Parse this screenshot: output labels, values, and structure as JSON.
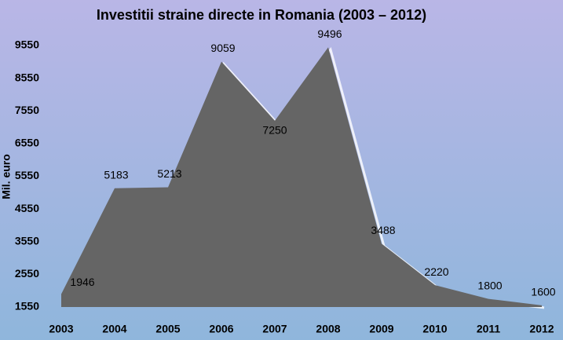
{
  "chart_data": {
    "type": "area",
    "title": "Investitii straine directe in Romania (2003 – 2012)",
    "y_label": "Mil. euro",
    "categories": [
      "2003",
      "2004",
      "2005",
      "2006",
      "2007",
      "2008",
      "2009",
      "2010",
      "2011",
      "2012"
    ],
    "values": [
      1946,
      5183,
      5213,
      9059,
      7250,
      9496,
      3488,
      2220,
      1800,
      1600
    ],
    "color": "#656565",
    "ylim": [
      1550,
      9550
    ],
    "yticks": [
      1550,
      2550,
      3550,
      4550,
      5550,
      6550,
      7550,
      8550,
      9550
    ],
    "grid": false
  }
}
